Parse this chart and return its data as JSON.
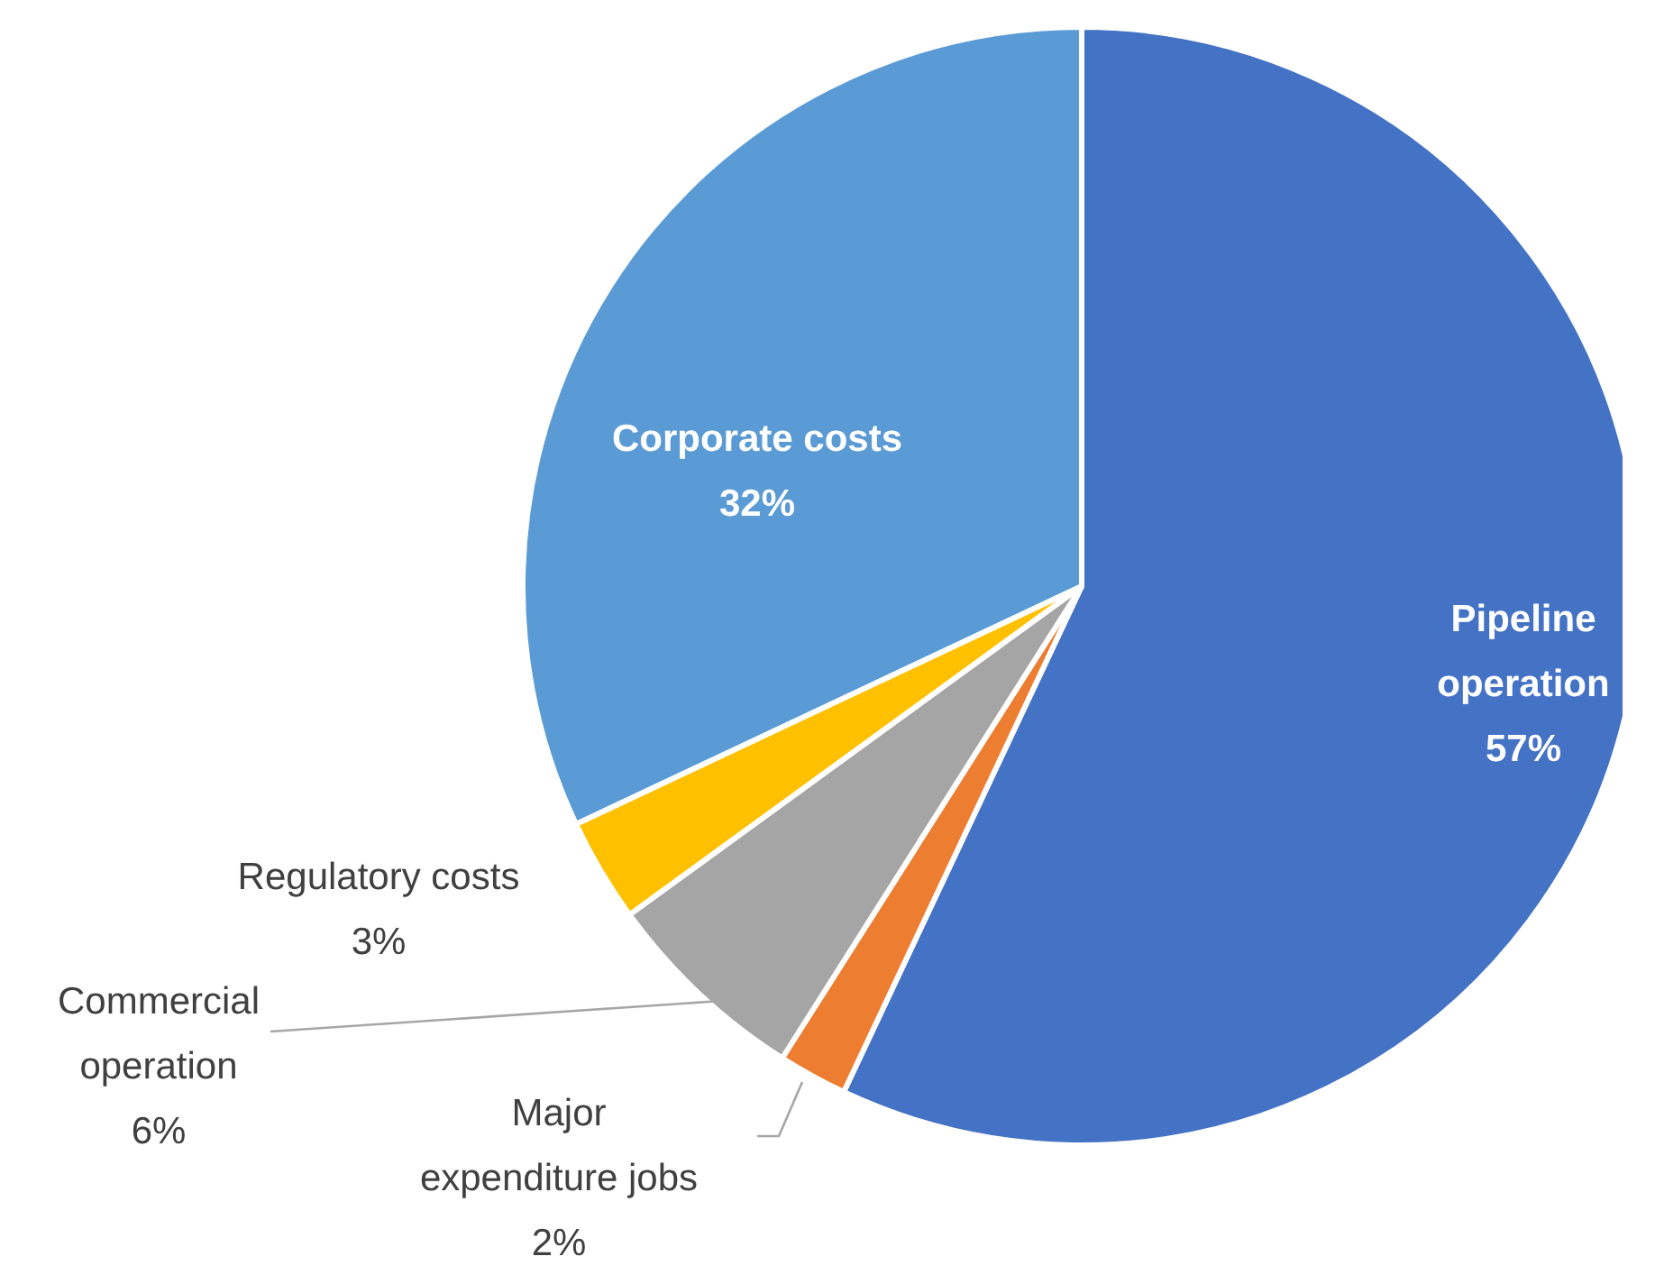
{
  "chart_data": {
    "type": "pie",
    "categories": [
      "Pipeline operation",
      "Major expenditure jobs",
      "Commercial operation",
      "Regulatory costs",
      "Corporate costs"
    ],
    "values": [
      57,
      2,
      6,
      3,
      32
    ],
    "colors": [
      "#4472c4",
      "#ed7d31",
      "#a5a5a5",
      "#ffc000",
      "#5b9bd5"
    ],
    "value_labels": [
      "57%",
      "2%",
      "6%",
      "3%",
      "32%"
    ]
  }
}
